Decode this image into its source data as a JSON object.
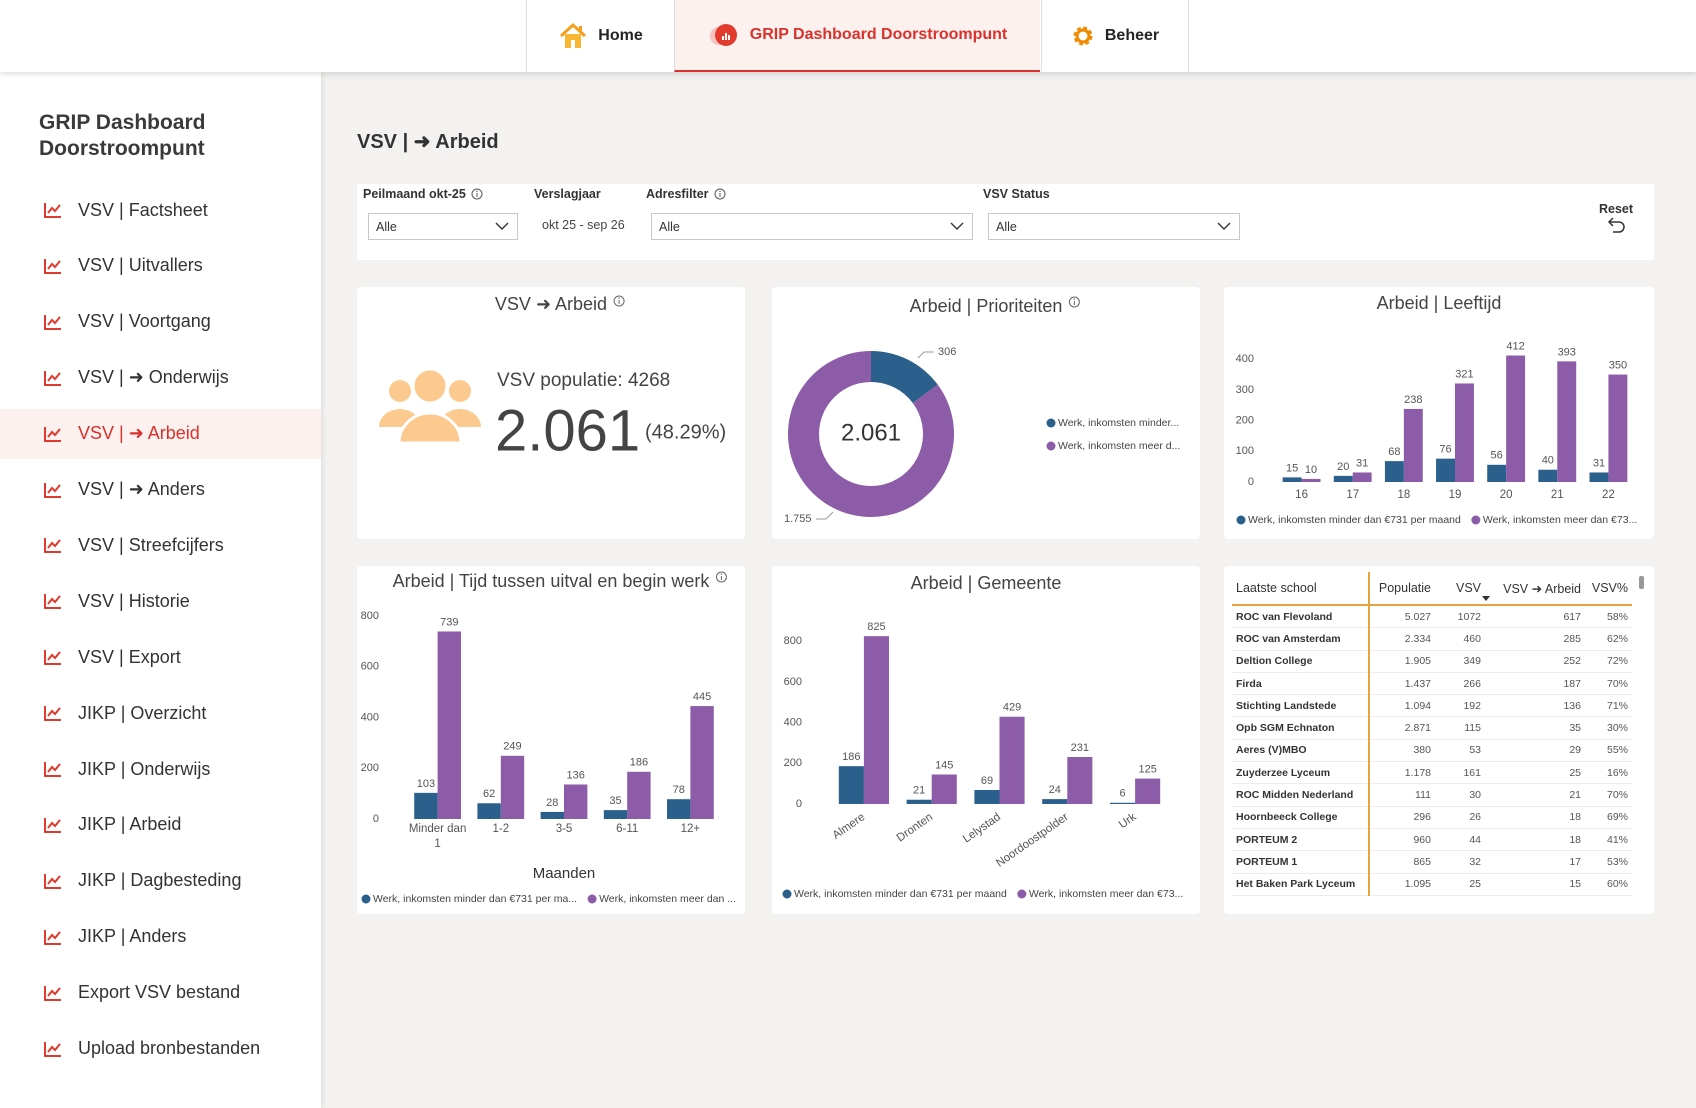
{
  "nav": {
    "tabs": [
      "Home",
      "GRIP Dashboard Doorstroompunt",
      "Beheer"
    ]
  },
  "sidebar": {
    "title": "GRIP Dashboard Doorstroompunt",
    "items": [
      "VSV | Factsheet",
      "VSV | Uitvallers",
      "VSV | Voortgang",
      "VSV | ➜ Onderwijs",
      "VSV | ➜ Arbeid",
      "VSV | ➜ Anders",
      "VSV | Streefcijfers",
      "VSV | Historie",
      "VSV | Export",
      "JIKP | Overzicht",
      "JIKP | Onderwijs",
      "JIKP | Arbeid",
      "JIKP | Dagbesteding",
      "JIKP | Anders",
      "Export VSV bestand",
      "Upload bronbestanden"
    ]
  },
  "page_title": "VSV | ➜ Arbeid",
  "filters": [
    {
      "label": "Peilmaand okt-25",
      "value": "Alle"
    },
    {
      "label": "Verslagjaar",
      "value": "okt 25 - sep 26"
    },
    {
      "label": "Adresfilter",
      "value": "Alle"
    },
    {
      "label": "VSV Status",
      "value": "Alle"
    }
  ],
  "reset": "Reset",
  "kpi": {
    "title": "VSV ➜ Arbeid",
    "population_label": "VSV populatie:",
    "population": 4268,
    "value": "2.061",
    "percent": "(48.29%)"
  },
  "chart_data": [
    {
      "type": "pie",
      "title": "Arbeid | Prioriteiten",
      "categories": [
        "Werk, inkomsten minder...",
        "Werk, inkomsten meer d..."
      ],
      "values": [
        306,
        1755
      ],
      "value_labels": [
        "306",
        "1.755"
      ],
      "colors": [
        "#2b5f8c",
        "#8c5ca8"
      ],
      "center_label": "2.061"
    },
    {
      "type": "bar",
      "title": "Arbeid | Leeftijd",
      "categories": [
        "16",
        "17",
        "18",
        "19",
        "20",
        "21",
        "22"
      ],
      "series": [
        {
          "name": "Werk, inkomsten minder dan €731 per maand",
          "color": "#2b5f8c",
          "values": [
            15,
            20,
            68,
            76,
            56,
            40,
            31
          ]
        },
        {
          "name": "Werk, inkomsten meer dan €73...",
          "color": "#8c5ca8",
          "values": [
            10,
            31,
            238,
            321,
            412,
            393,
            350
          ]
        }
      ],
      "ylim": [
        0,
        430
      ],
      "yticks": [
        0,
        100,
        200,
        300,
        400
      ]
    },
    {
      "type": "bar",
      "title": "Arbeid | Tijd tussen uitval en begin werk",
      "x_label": "Maanden",
      "categories": [
        "Minder dan 1",
        "1-2",
        "3-5",
        "6-11",
        "12+"
      ],
      "series": [
        {
          "name": "Werk, inkomsten minder dan €731 per ma...",
          "color": "#2b5f8c",
          "values": [
            103,
            62,
            28,
            35,
            78
          ]
        },
        {
          "name": "Werk, inkomsten meer dan ...",
          "color": "#8c5ca8",
          "values": [
            739,
            249,
            136,
            186,
            445
          ]
        }
      ],
      "ylim": [
        0,
        800
      ],
      "yticks": [
        0,
        200,
        400,
        600,
        800
      ]
    },
    {
      "type": "bar",
      "title": "Arbeid | Gemeente",
      "categories": [
        "Almere",
        "Dronten",
        "Lelystad",
        "Noordoostpolder",
        "Urk"
      ],
      "series": [
        {
          "name": "Werk, inkomsten minder dan €731 per maand",
          "color": "#2b5f8c",
          "values": [
            186,
            21,
            69,
            24,
            6
          ]
        },
        {
          "name": "Werk, inkomsten meer dan €73...",
          "color": "#8c5ca8",
          "values": [
            825,
            145,
            429,
            231,
            125
          ]
        }
      ],
      "ylim": [
        0,
        880
      ],
      "yticks": [
        0,
        200,
        400,
        600,
        800
      ]
    }
  ],
  "table": {
    "columns": [
      "Laatste school",
      "Populatie",
      "VSV",
      "VSV ➜ Arbeid",
      "VSV%"
    ],
    "rows": [
      [
        "ROC van Flevoland",
        "5.027",
        "1072",
        "617",
        "58%"
      ],
      [
        "ROC van Amsterdam",
        "2.334",
        "460",
        "285",
        "62%"
      ],
      [
        "Deltion College",
        "1.905",
        "349",
        "252",
        "72%"
      ],
      [
        "Firda",
        "1.437",
        "266",
        "187",
        "70%"
      ],
      [
        "Stichting Landstede",
        "1.094",
        "192",
        "136",
        "71%"
      ],
      [
        "Opb SGM Echnaton",
        "2.871",
        "115",
        "35",
        "30%"
      ],
      [
        "Aeres (V)MBO",
        "380",
        "53",
        "29",
        "55%"
      ],
      [
        "Zuyderzee Lyceum",
        "1.178",
        "161",
        "25",
        "16%"
      ],
      [
        "ROC Midden Nederland",
        "111",
        "30",
        "21",
        "70%"
      ],
      [
        "Hoornbeeck College",
        "296",
        "26",
        "18",
        "69%"
      ],
      [
        "PORTEUM 2",
        "960",
        "44",
        "18",
        "41%"
      ],
      [
        "PORTEUM 1",
        "865",
        "32",
        "17",
        "53%"
      ],
      [
        "Het Baken Park Lyceum",
        "1.095",
        "25",
        "15",
        "60%"
      ]
    ]
  }
}
